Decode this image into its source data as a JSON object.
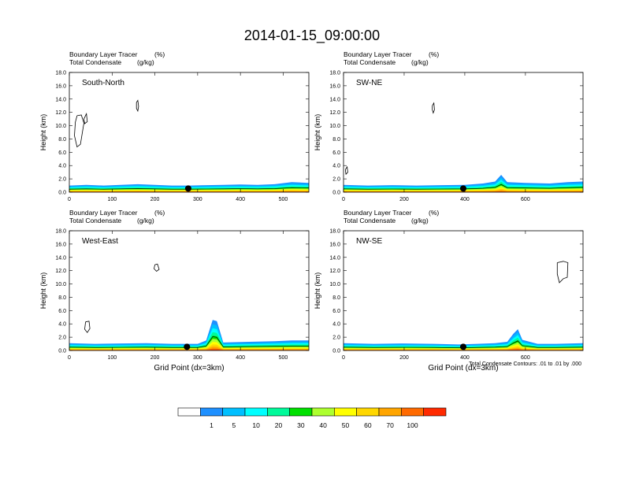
{
  "title": "2014-01-15_09:00:00",
  "colors": {
    "fill_levels": [
      "#ffffff",
      "#1e90ff",
      "#00bfff",
      "#00ffff",
      "#00fa9a",
      "#00e000",
      "#adff2f",
      "#ffff00",
      "#ffd700",
      "#ffa500",
      "#ff6a00",
      "#ff2a00"
    ],
    "contour": "#000000",
    "marker": "#000000"
  },
  "colorbar": {
    "labels": [
      "1",
      "5",
      "10",
      "20",
      "30",
      "40",
      "50",
      "60",
      "70",
      "100"
    ]
  },
  "footnote": "Total Condensate Contours: .01 to .01 by .000",
  "chart_data": [
    {
      "type": "heatmap",
      "panel": "South-North",
      "header_line1": "Boundary Layer Tracer",
      "header_unit1": "(%)",
      "header_line2": "Total Condensate",
      "header_unit2": "(g/kg)",
      "ylabel": "Height (km)",
      "xlabel": "",
      "ylim": [
        0,
        18
      ],
      "yticks": [
        "0.0",
        "2.0",
        "4.0",
        "6.0",
        "8.0",
        "10.0",
        "12.0",
        "14.0",
        "16.0",
        "18.0"
      ],
      "xlim": [
        0,
        560
      ],
      "xticks": [
        "0",
        "100",
        "200",
        "300",
        "400",
        "500"
      ],
      "xtick_values": [
        0,
        100,
        200,
        300,
        400,
        500
      ],
      "pbl_profile": [
        [
          0,
          1.0
        ],
        [
          40,
          1.1
        ],
        [
          80,
          1.0
        ],
        [
          120,
          1.1
        ],
        [
          160,
          1.2
        ],
        [
          200,
          1.1
        ],
        [
          240,
          1.0
        ],
        [
          280,
          1.0
        ],
        [
          320,
          1.05
        ],
        [
          360,
          1.1
        ],
        [
          400,
          1.15
        ],
        [
          440,
          1.1
        ],
        [
          480,
          1.2
        ],
        [
          520,
          1.5
        ],
        [
          560,
          1.4
        ]
      ],
      "marker_x": 278,
      "contours": [
        [
          [
            18,
            11.5
          ],
          [
            28,
            11.6
          ],
          [
            34,
            10.4
          ],
          [
            30,
            8.8
          ],
          [
            26,
            7.2
          ],
          [
            18,
            6.8
          ],
          [
            12,
            8.5
          ],
          [
            14,
            10.5
          ],
          [
            18,
            11.5
          ]
        ],
        [
          [
            34,
            11.0
          ],
          [
            40,
            11.8
          ],
          [
            42,
            10.6
          ],
          [
            36,
            10.3
          ],
          [
            34,
            11.0
          ]
        ],
        [
          [
            157,
            13.5
          ],
          [
            160,
            13.8
          ],
          [
            162,
            12.9
          ],
          [
            160,
            12.2
          ],
          [
            157,
            12.6
          ],
          [
            157,
            13.5
          ]
        ]
      ]
    },
    {
      "type": "heatmap",
      "panel": "SW-NE",
      "header_line1": "Boundary Layer Tracer",
      "header_unit1": "(%)",
      "header_line2": "Total Condensate",
      "header_unit2": "(g/kg)",
      "ylabel": "Height (km)",
      "xlabel": "",
      "ylim": [
        0,
        18
      ],
      "yticks": [
        "0.0",
        "2.0",
        "4.0",
        "6.0",
        "8.0",
        "10.0",
        "12.0",
        "14.0",
        "16.0",
        "18.0"
      ],
      "xlim": [
        0,
        790
      ],
      "xticks": [
        "0",
        "200",
        "400",
        "600"
      ],
      "xtick_values": [
        0,
        200,
        400,
        600
      ],
      "pbl_profile": [
        [
          0,
          1.1
        ],
        [
          80,
          1.0
        ],
        [
          160,
          1.05
        ],
        [
          240,
          1.0
        ],
        [
          320,
          1.05
        ],
        [
          400,
          1.1
        ],
        [
          460,
          1.3
        ],
        [
          500,
          1.6
        ],
        [
          520,
          2.6
        ],
        [
          540,
          1.5
        ],
        [
          600,
          1.4
        ],
        [
          680,
          1.3
        ],
        [
          740,
          1.5
        ],
        [
          790,
          1.6
        ]
      ],
      "marker_x": 395,
      "contours": [
        [
          [
            6,
            3.4
          ],
          [
            12,
            3.8
          ],
          [
            14,
            3.0
          ],
          [
            8,
            2.7
          ],
          [
            6,
            3.4
          ]
        ],
        [
          [
            293,
            13.0
          ],
          [
            298,
            13.4
          ],
          [
            300,
            12.4
          ],
          [
            296,
            11.9
          ],
          [
            293,
            12.4
          ],
          [
            293,
            13.0
          ]
        ]
      ]
    },
    {
      "type": "heatmap",
      "panel": "West-East",
      "header_line1": "Boundary Layer Tracer",
      "header_unit1": "(%)",
      "header_line2": "Total Condensate",
      "header_unit2": "(g/kg)",
      "ylabel": "Height (km)",
      "xlabel": "Grid Point (dx=3km)",
      "ylim": [
        0,
        18
      ],
      "yticks": [
        "0.0",
        "2.0",
        "4.0",
        "6.0",
        "8.0",
        "10.0",
        "12.0",
        "14.0",
        "16.0",
        "18.0"
      ],
      "xlim": [
        0,
        560
      ],
      "xticks": [
        "0",
        "100",
        "200",
        "300",
        "400",
        "500"
      ],
      "xtick_values": [
        0,
        100,
        200,
        300,
        400,
        500
      ],
      "pbl_profile": [
        [
          0,
          1.1
        ],
        [
          60,
          1.0
        ],
        [
          120,
          1.05
        ],
        [
          180,
          1.1
        ],
        [
          240,
          1.0
        ],
        [
          300,
          1.0
        ],
        [
          320,
          1.5
        ],
        [
          335,
          4.6
        ],
        [
          345,
          4.4
        ],
        [
          360,
          1.2
        ],
        [
          420,
          1.3
        ],
        [
          480,
          1.4
        ],
        [
          520,
          1.5
        ],
        [
          560,
          1.5
        ]
      ],
      "marker_x": 275,
      "contours": [
        [
          [
            200,
            12.9
          ],
          [
            206,
            13.0
          ],
          [
            210,
            12.2
          ],
          [
            204,
            11.9
          ],
          [
            198,
            12.3
          ],
          [
            200,
            12.9
          ]
        ],
        [
          [
            38,
            4.3
          ],
          [
            46,
            4.4
          ],
          [
            48,
            3.3
          ],
          [
            42,
            2.7
          ],
          [
            36,
            3.2
          ],
          [
            38,
            4.3
          ]
        ]
      ]
    },
    {
      "type": "heatmap",
      "panel": "NW-SE",
      "header_line1": "Boundary Layer Tracer",
      "header_unit1": "(%)",
      "header_line2": "Total Condensate",
      "header_unit2": "(g/kg)",
      "ylabel": "Height (km)",
      "xlabel": "Grid Point (dx=3km)",
      "ylim": [
        0,
        18
      ],
      "yticks": [
        "0.0",
        "2.0",
        "4.0",
        "6.0",
        "8.0",
        "10.0",
        "12.0",
        "14.0",
        "16.0",
        "18.0"
      ],
      "xlim": [
        0,
        790
      ],
      "xticks": [
        "0",
        "200",
        "400",
        "600"
      ],
      "xtick_values": [
        0,
        200,
        400,
        600
      ],
      "pbl_profile": [
        [
          0,
          1.1
        ],
        [
          100,
          1.0
        ],
        [
          200,
          1.05
        ],
        [
          300,
          1.0
        ],
        [
          380,
          0.9
        ],
        [
          440,
          1.0
        ],
        [
          500,
          1.1
        ],
        [
          540,
          1.3
        ],
        [
          560,
          2.5
        ],
        [
          575,
          3.2
        ],
        [
          590,
          1.6
        ],
        [
          640,
          1.0
        ],
        [
          700,
          1.0
        ],
        [
          790,
          1.1
        ]
      ],
      "marker_x": 395,
      "contours": [
        [
          [
            705,
            13.2
          ],
          [
            725,
            13.4
          ],
          [
            740,
            13.2
          ],
          [
            738,
            11.0
          ],
          [
            725,
            10.8
          ],
          [
            712,
            10.2
          ],
          [
            705,
            11.5
          ],
          [
            705,
            13.2
          ]
        ]
      ]
    }
  ]
}
